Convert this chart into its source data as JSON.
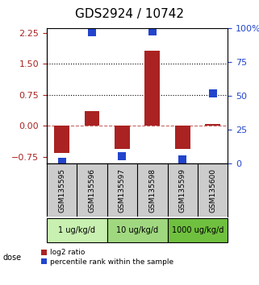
{
  "title": "GDS2924 / 10742",
  "samples": [
    "GSM135595",
    "GSM135596",
    "GSM135597",
    "GSM135598",
    "GSM135599",
    "GSM135600"
  ],
  "log2_ratio": [
    -0.65,
    0.35,
    -0.55,
    1.82,
    -0.55,
    0.05
  ],
  "percentile_rank": [
    1,
    97,
    5,
    98,
    3,
    52
  ],
  "dose_groups": [
    {
      "label": "1 ug/kg/d",
      "samples": [
        0,
        1
      ],
      "color": "#c8f0b0"
    },
    {
      "label": "10 ug/kg/d",
      "samples": [
        2,
        3
      ],
      "color": "#a0d880"
    },
    {
      "label": "1000 ug/kg/d",
      "samples": [
        4,
        5
      ],
      "color": "#70c040"
    }
  ],
  "ylim_left": [
    -0.9,
    2.35
  ],
  "ylim_right": [
    0,
    100
  ],
  "yticks_left": [
    -0.75,
    0,
    0.75,
    1.5,
    2.25
  ],
  "yticks_right": [
    0,
    25,
    50,
    75,
    100
  ],
  "hlines_dotted": [
    0.75,
    1.5
  ],
  "hline_dashed": 0,
  "bar_color": "#aa2222",
  "dot_color": "#2244cc",
  "bar_width": 0.5,
  "dot_size": 50,
  "xlabel_color": "#aa2222",
  "ylabel_right_color": "#2244cc",
  "legend_bar_label": "log2 ratio",
  "legend_dot_label": "percentile rank within the sample",
  "sample_box_color": "#cccccc",
  "title_fontsize": 11,
  "tick_fontsize": 8,
  "label_fontsize": 8
}
